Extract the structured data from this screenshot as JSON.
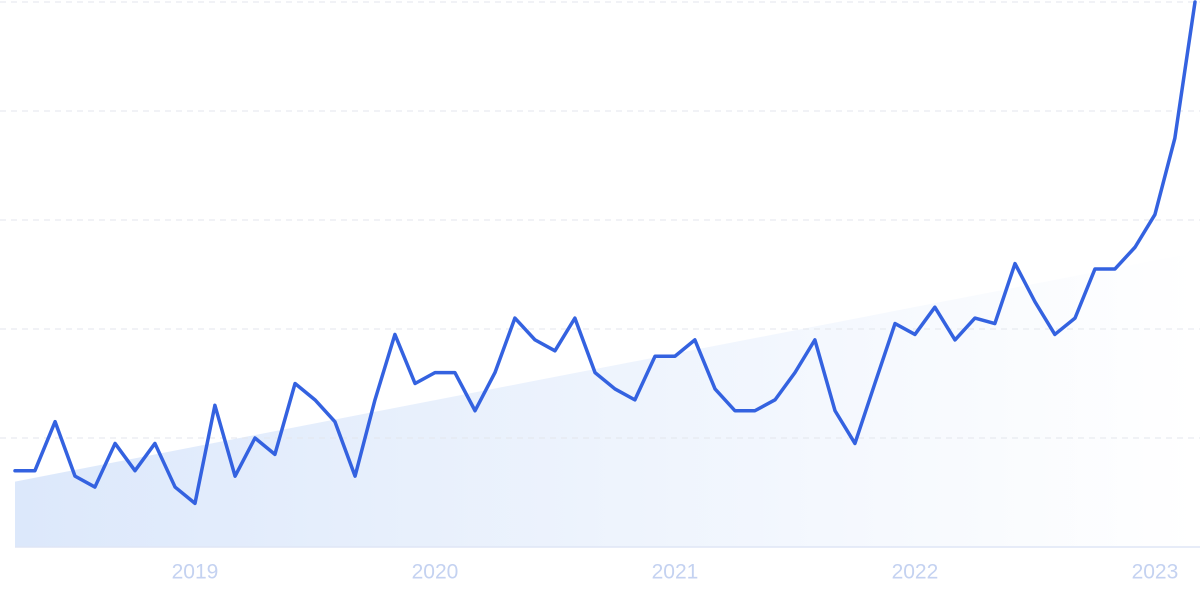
{
  "chart_data": {
    "type": "line",
    "x": [
      2018.25,
      2018.333,
      2018.417,
      2018.5,
      2018.583,
      2018.667,
      2018.75,
      2018.833,
      2018.917,
      2019.0,
      2019.083,
      2019.167,
      2019.25,
      2019.333,
      2019.417,
      2019.5,
      2019.583,
      2019.667,
      2019.75,
      2019.833,
      2019.917,
      2020.0,
      2020.083,
      2020.167,
      2020.25,
      2020.333,
      2020.417,
      2020.5,
      2020.583,
      2020.667,
      2020.75,
      2020.833,
      2020.917,
      2021.0,
      2021.083,
      2021.167,
      2021.25,
      2021.333,
      2021.417,
      2021.5,
      2021.583,
      2021.667,
      2021.75,
      2021.833,
      2021.917,
      2022.0,
      2022.083,
      2022.167,
      2022.25,
      2022.333,
      2022.417,
      2022.5,
      2022.583,
      2022.667,
      2022.75,
      2022.833,
      2022.917,
      2023.0,
      2023.083,
      2023.167
    ],
    "series": [
      {
        "color": "#3462e0",
        "values": [
          14,
          14,
          23,
          13,
          11,
          19,
          14,
          19,
          11,
          8,
          26,
          13,
          20,
          17,
          30,
          27,
          23,
          13,
          27,
          39,
          30,
          32,
          32,
          25,
          32,
          42,
          38,
          36,
          42,
          32,
          29,
          27,
          35,
          35,
          38,
          29,
          25,
          25,
          27,
          32,
          38,
          25,
          19,
          30,
          41,
          39,
          44,
          38,
          42,
          41,
          52,
          45,
          39,
          42,
          51,
          51,
          55,
          61,
          75,
          100
        ]
      }
    ],
    "trend_area": {
      "x": [
        2018.25,
        2023.167
      ],
      "values": [
        12,
        54
      ],
      "color": "#dce8fb"
    },
    "xlim": [
      2018.25,
      2023.167
    ],
    "xticks": [
      2019,
      2020,
      2021,
      2022,
      2023
    ],
    "ylim": [
      0,
      100
    ],
    "yticks": [
      0,
      20,
      40,
      60,
      80,
      100
    ],
    "grid": true
  }
}
